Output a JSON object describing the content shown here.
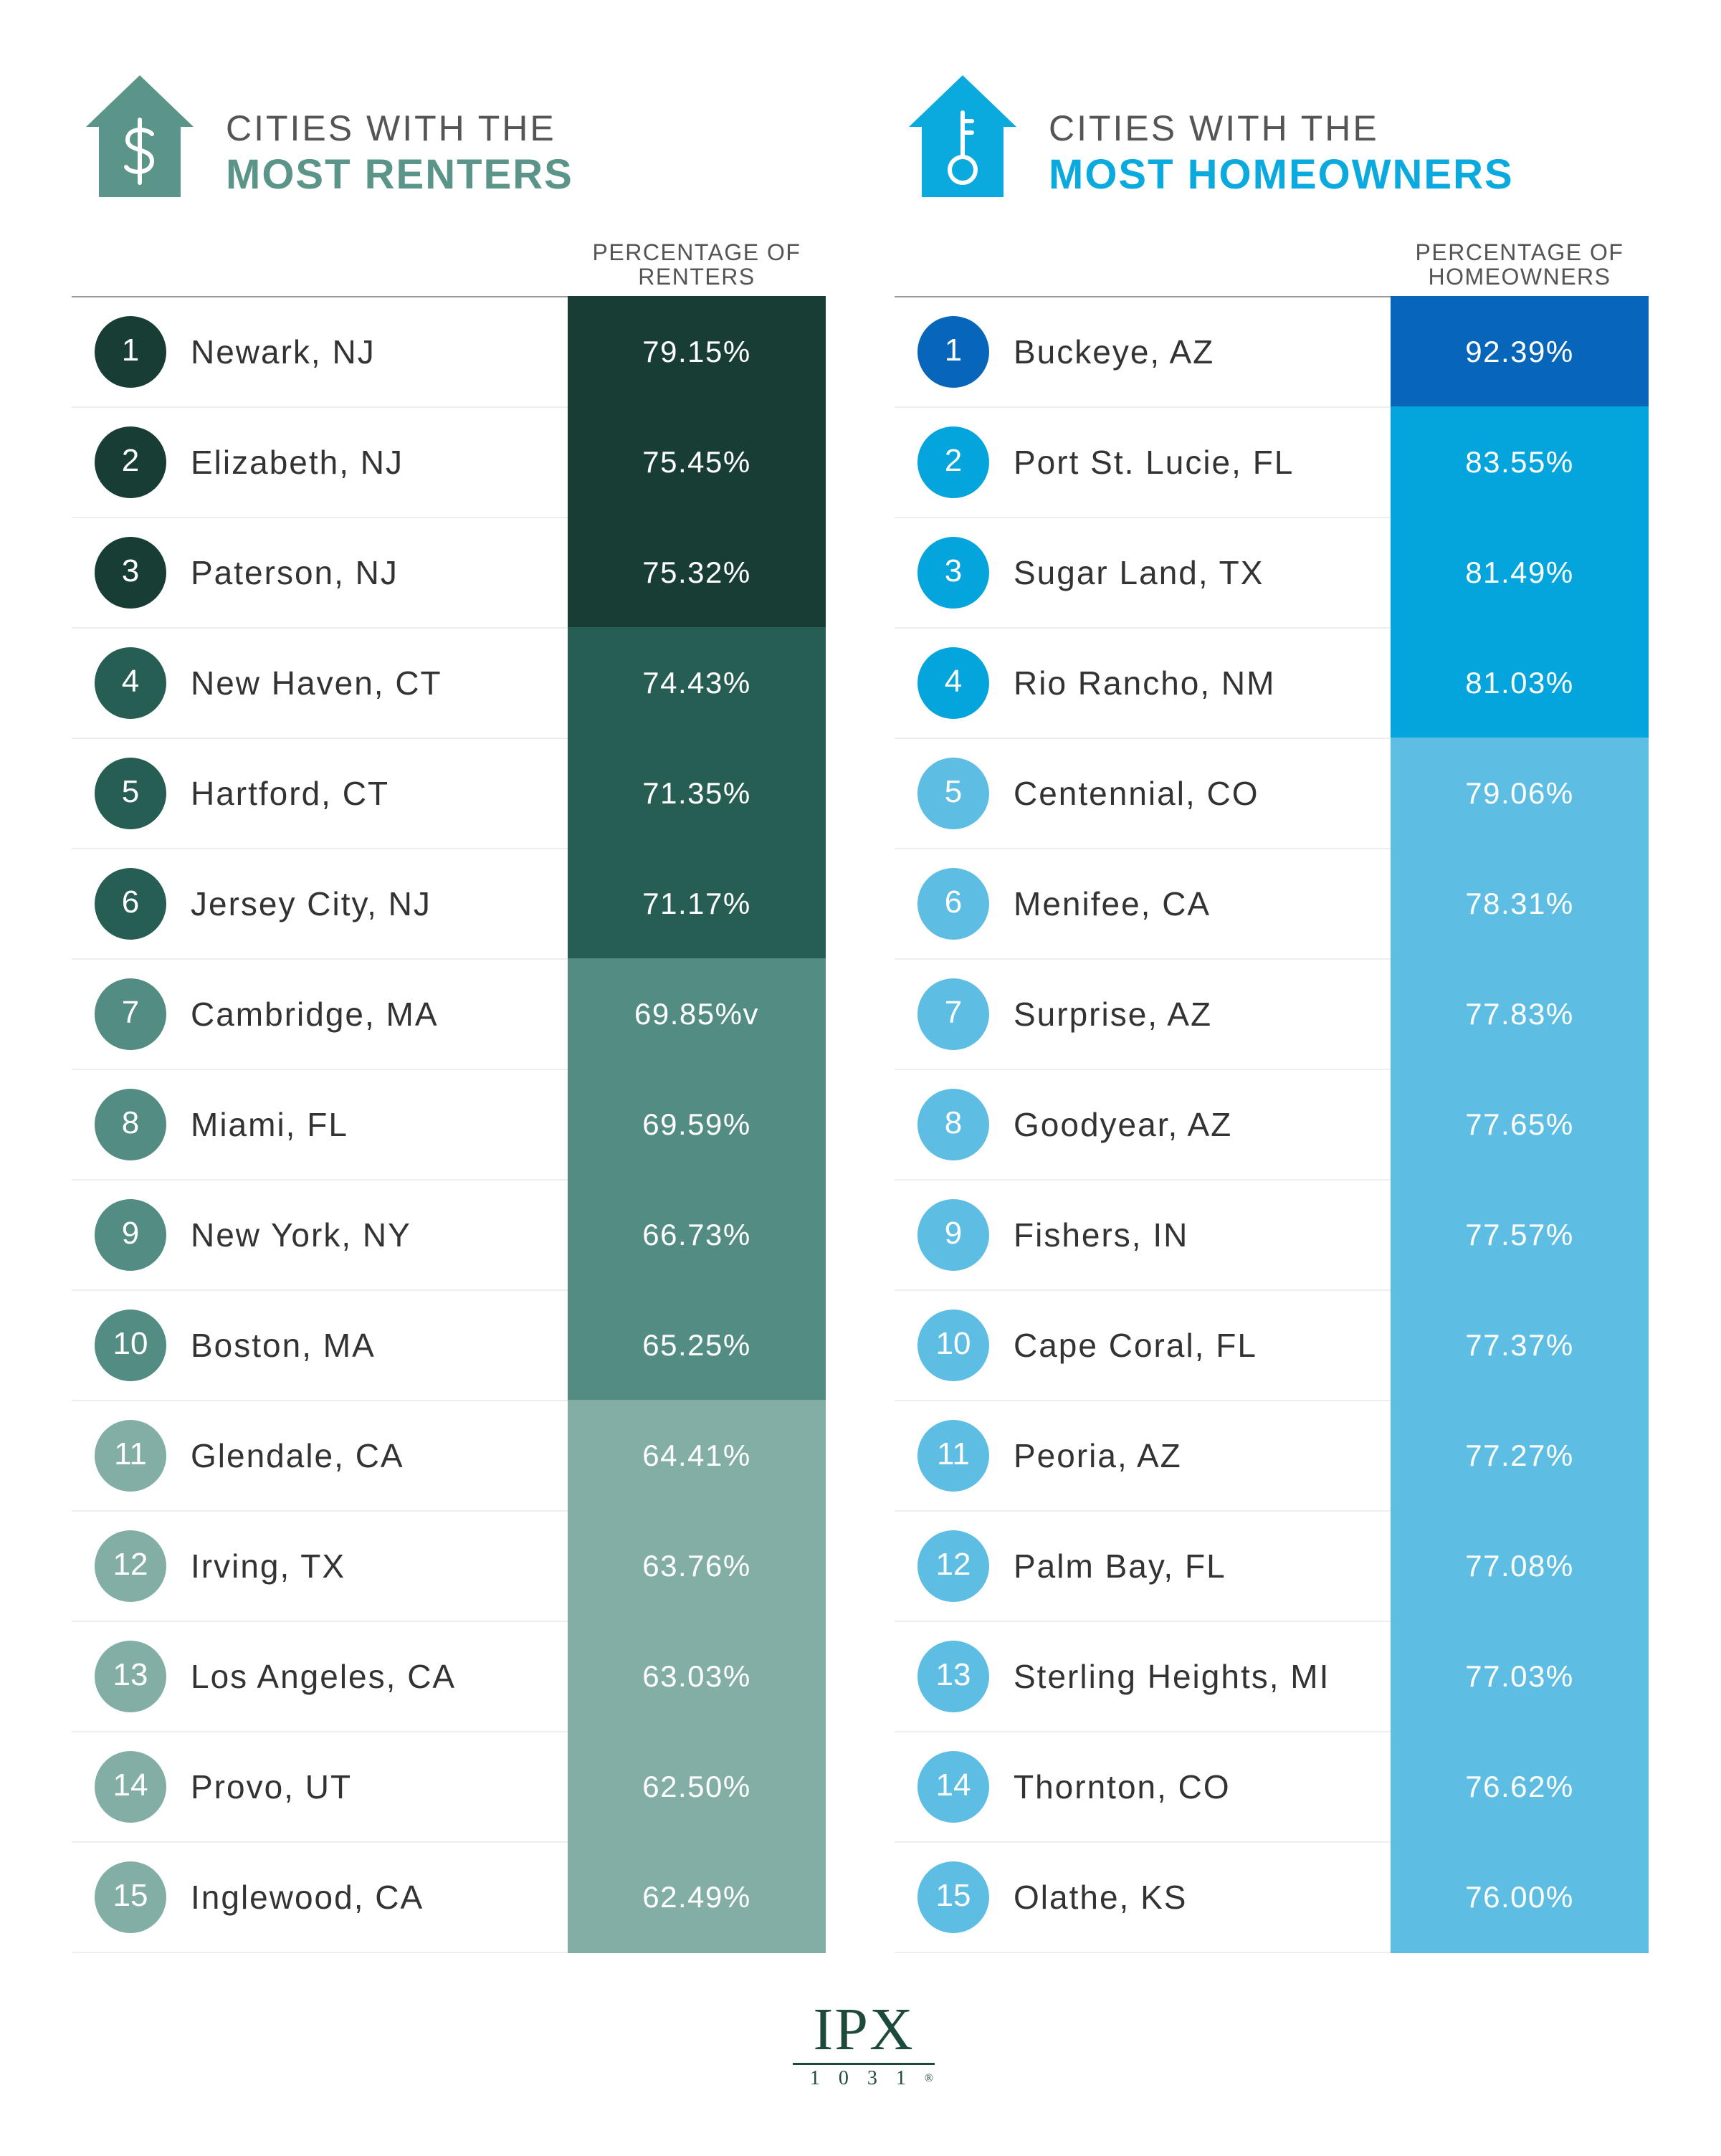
{
  "colors": {
    "renters_title": "#5b9488",
    "owners_title": "#0aa9de",
    "renters_tiers": [
      "#183d35",
      "#275e53",
      "#538c83",
      "#83aea6"
    ],
    "owners_tiers": [
      "#0866ba",
      "#04a5dc",
      "#5ebde3"
    ],
    "logo": "#1e4a3e"
  },
  "chart_data": [
    {
      "type": "table",
      "title_line1": "CITIES WITH THE",
      "title_line2": "MOST RENTERS",
      "icon": "house-dollar-icon",
      "column_header_line1": "PERCENTAGE OF",
      "column_header_line2": "RENTERS",
      "rows": [
        {
          "rank": "1",
          "city": "Newark, NJ",
          "value_label": "79.15%",
          "value": 79.15,
          "tier": 1
        },
        {
          "rank": "2",
          "city": "Elizabeth, NJ",
          "value_label": "75.45%",
          "value": 75.45,
          "tier": 1
        },
        {
          "rank": "3",
          "city": "Paterson, NJ",
          "value_label": "75.32%",
          "value": 75.32,
          "tier": 1
        },
        {
          "rank": "4",
          "city": "New Haven, CT",
          "value_label": "74.43%",
          "value": 74.43,
          "tier": 2
        },
        {
          "rank": "5",
          "city": "Hartford, CT",
          "value_label": "71.35%",
          "value": 71.35,
          "tier": 2
        },
        {
          "rank": "6",
          "city": "Jersey City, NJ",
          "value_label": "71.17%",
          "value": 71.17,
          "tier": 2
        },
        {
          "rank": "7",
          "city": "Cambridge, MA",
          "value_label": "69.85%v",
          "value": 69.85,
          "tier": 3
        },
        {
          "rank": "8",
          "city": "Miami, FL",
          "value_label": "69.59%",
          "value": 69.59,
          "tier": 3
        },
        {
          "rank": "9",
          "city": "New York, NY",
          "value_label": "66.73%",
          "value": 66.73,
          "tier": 3
        },
        {
          "rank": "10",
          "city": "Boston, MA",
          "value_label": "65.25%",
          "value": 65.25,
          "tier": 3
        },
        {
          "rank": "11",
          "city": "Glendale, CA",
          "value_label": "64.41%",
          "value": 64.41,
          "tier": 4
        },
        {
          "rank": "12",
          "city": "Irving, TX",
          "value_label": "63.76%",
          "value": 63.76,
          "tier": 4
        },
        {
          "rank": "13",
          "city": "Los Angeles, CA",
          "value_label": "63.03%",
          "value": 63.03,
          "tier": 4
        },
        {
          "rank": "14",
          "city": "Provo, UT",
          "value_label": "62.50%",
          "value": 62.5,
          "tier": 4
        },
        {
          "rank": "15",
          "city": "Inglewood, CA",
          "value_label": "62.49%",
          "value": 62.49,
          "tier": 4
        }
      ]
    },
    {
      "type": "table",
      "title_line1": "CITIES WITH THE",
      "title_line2": "MOST HOMEOWNERS",
      "icon": "house-key-icon",
      "column_header_line1": "PERCENTAGE OF",
      "column_header_line2": "HOMEOWNERS",
      "rows": [
        {
          "rank": "1",
          "city": "Buckeye, AZ",
          "value_label": "92.39%",
          "value": 92.39,
          "tier": 1
        },
        {
          "rank": "2",
          "city": "Port St. Lucie, FL",
          "value_label": "83.55%",
          "value": 83.55,
          "tier": 2
        },
        {
          "rank": "3",
          "city": "Sugar Land, TX",
          "value_label": "81.49%",
          "value": 81.49,
          "tier": 2
        },
        {
          "rank": "4",
          "city": "Rio Rancho, NM",
          "value_label": "81.03%",
          "value": 81.03,
          "tier": 2
        },
        {
          "rank": "5",
          "city": "Centennial, CO",
          "value_label": "79.06%",
          "value": 79.06,
          "tier": 3
        },
        {
          "rank": "6",
          "city": "Menifee, CA",
          "value_label": "78.31%",
          "value": 78.31,
          "tier": 3
        },
        {
          "rank": "7",
          "city": "Surprise, AZ",
          "value_label": "77.83%",
          "value": 77.83,
          "tier": 3
        },
        {
          "rank": "8",
          "city": "Goodyear, AZ",
          "value_label": "77.65%",
          "value": 77.65,
          "tier": 3
        },
        {
          "rank": "9",
          "city": "Fishers, IN",
          "value_label": "77.57%",
          "value": 77.57,
          "tier": 3
        },
        {
          "rank": "10",
          "city": "Cape Coral, FL",
          "value_label": "77.37%",
          "value": 77.37,
          "tier": 3
        },
        {
          "rank": "11",
          "city": "Peoria, AZ",
          "value_label": "77.27%",
          "value": 77.27,
          "tier": 3
        },
        {
          "rank": "12",
          "city": "Palm Bay, FL",
          "value_label": "77.08%",
          "value": 77.08,
          "tier": 3
        },
        {
          "rank": "13",
          "city": "Sterling Heights, MI",
          "value_label": "77.03%",
          "value": 77.03,
          "tier": 3
        },
        {
          "rank": "14",
          "city": "Thornton, CO",
          "value_label": "76.62%",
          "value": 76.62,
          "tier": 3
        },
        {
          "rank": "15",
          "city": "Olathe, KS",
          "value_label": "76.00%",
          "value": 76.0,
          "tier": 3
        }
      ]
    }
  ],
  "logo": {
    "mark": "IPX",
    "sub": "1031",
    "registered": "®"
  }
}
